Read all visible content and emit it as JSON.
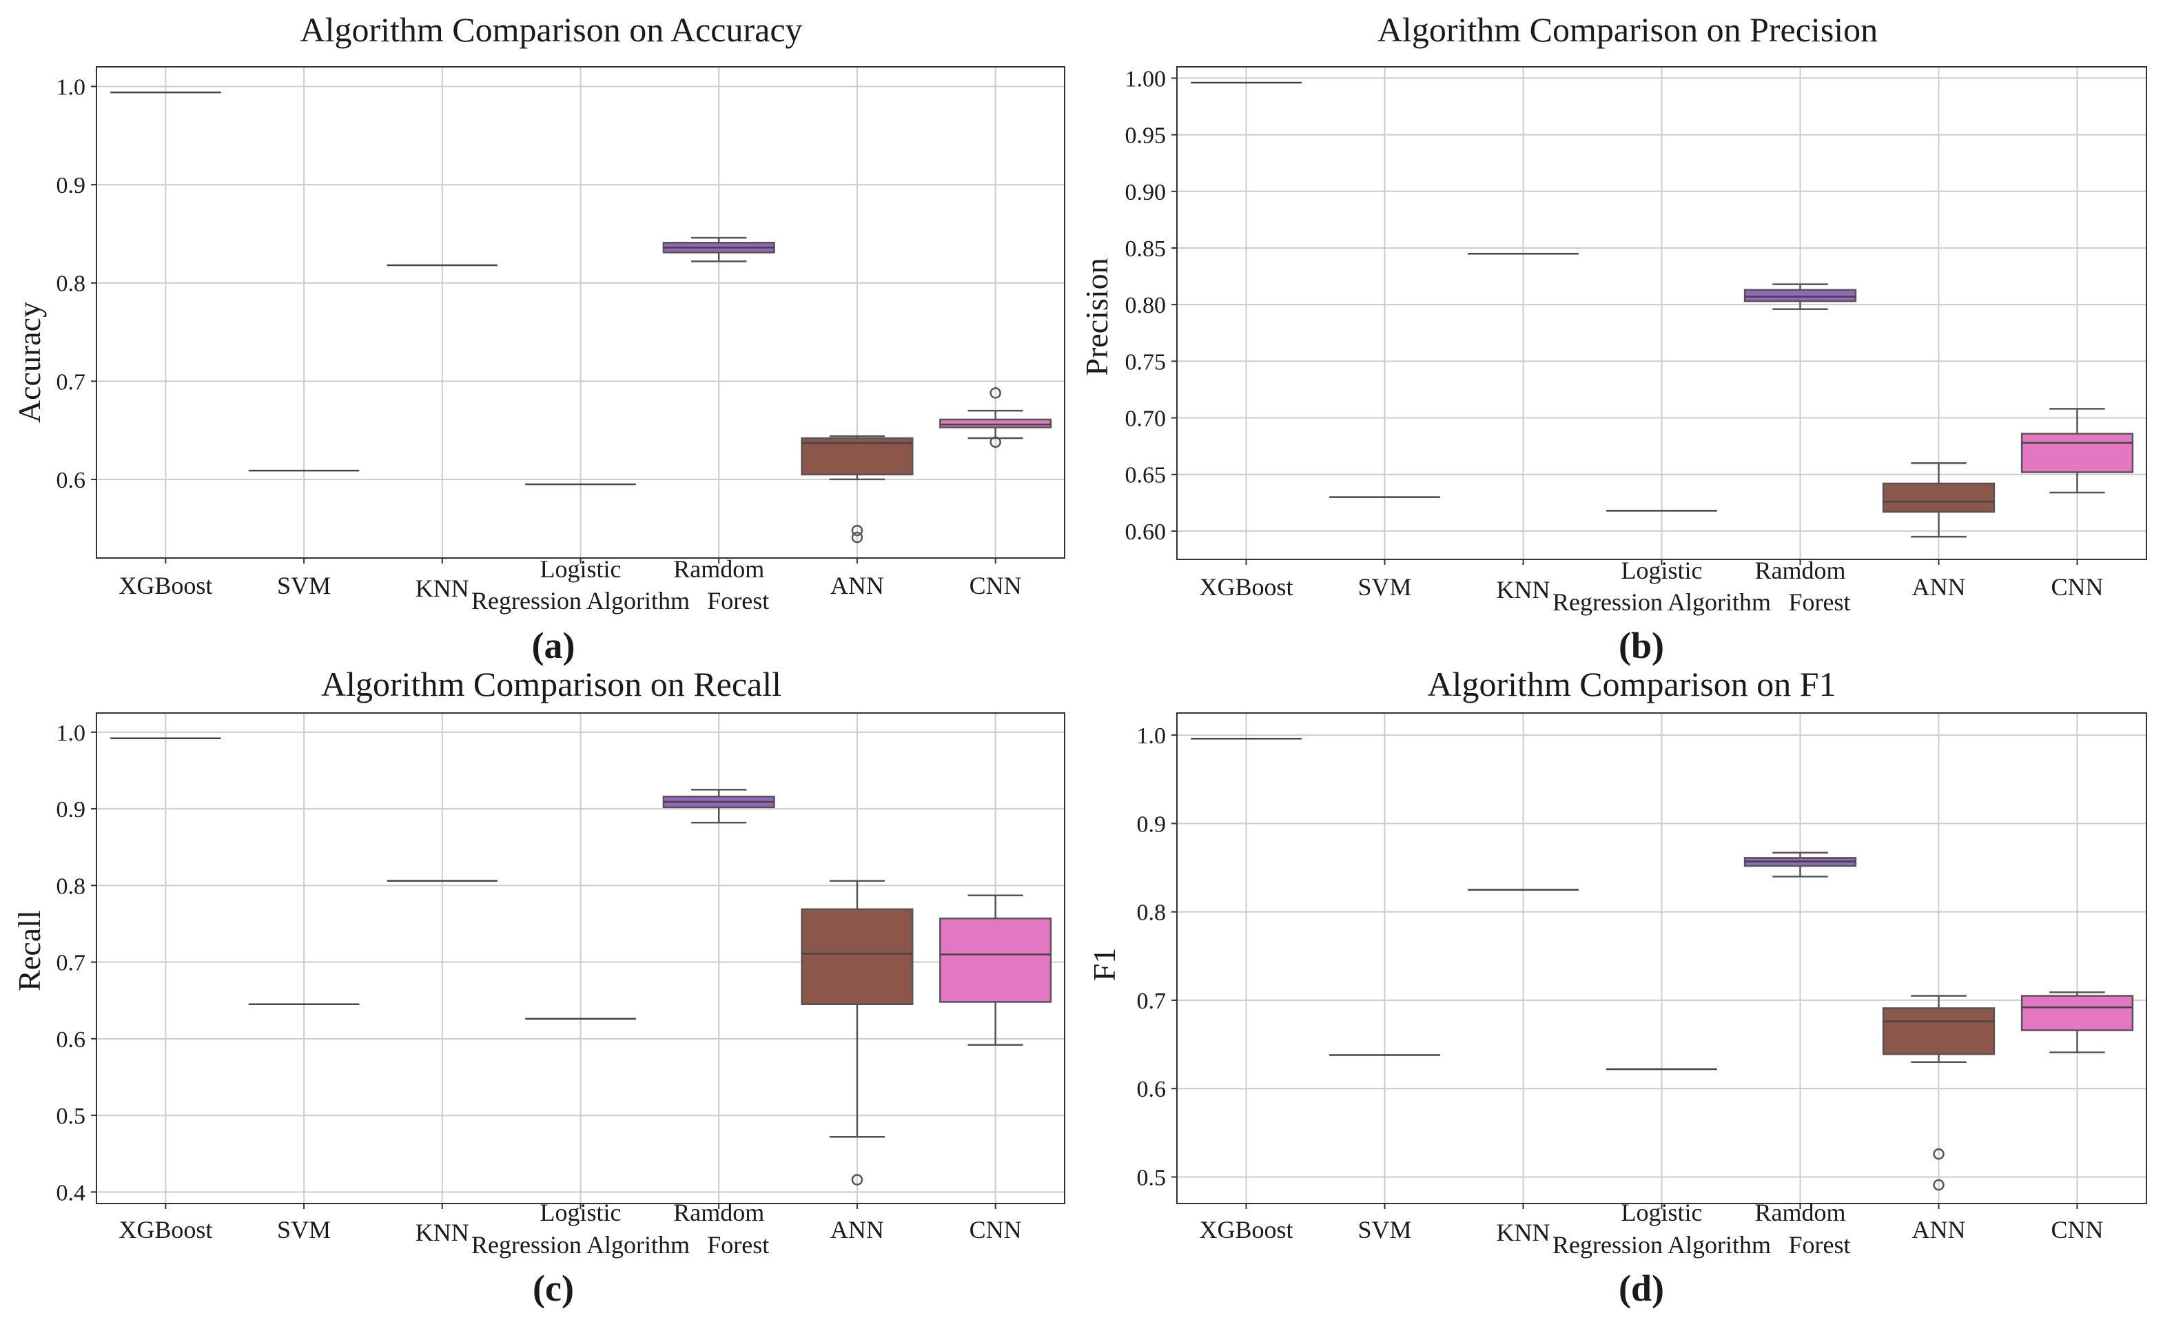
{
  "chart_data": [
    {
      "type": "box",
      "panel": "(a)",
      "title": "Algorithm Comparison on Accuracy",
      "ylabel": "Accuracy",
      "ylim": [
        0.52,
        1.02
      ],
      "yticks": [
        0.6,
        0.7,
        0.8,
        0.9,
        1.0
      ],
      "ytick_labels": [
        "0.6",
        "0.7",
        "0.8",
        "0.9",
        "1.0"
      ],
      "categories": [
        "XGBoost",
        "SVM",
        "KNN",
        "Logistic Regression Algorithm",
        "Ramdom Forest",
        "ANN",
        "CNN"
      ],
      "boxes": [
        {
          "name": "XGBoost",
          "color": "#7f7f7f",
          "min": 0.994,
          "q1": 0.994,
          "median": 0.994,
          "q3": 0.994,
          "max": 0.994,
          "fliers": []
        },
        {
          "name": "SVM",
          "color": "#7f7f7f",
          "min": 0.609,
          "q1": 0.609,
          "median": 0.609,
          "q3": 0.609,
          "max": 0.609,
          "fliers": []
        },
        {
          "name": "KNN",
          "color": "#7f7f7f",
          "min": 0.818,
          "q1": 0.818,
          "median": 0.818,
          "q3": 0.818,
          "max": 0.818,
          "fliers": []
        },
        {
          "name": "Logistic Regression Algorithm",
          "color": "#7f7f7f",
          "min": 0.595,
          "q1": 0.595,
          "median": 0.595,
          "q3": 0.595,
          "max": 0.595,
          "fliers": []
        },
        {
          "name": "Ramdom Forest",
          "color": "#9467bd",
          "min": 0.822,
          "q1": 0.831,
          "median": 0.836,
          "q3": 0.841,
          "max": 0.846,
          "fliers": []
        },
        {
          "name": "ANN",
          "color": "#8c564b",
          "min": 0.6,
          "q1": 0.605,
          "median": 0.637,
          "q3": 0.642,
          "max": 0.644,
          "fliers": [
            0.548,
            0.541
          ]
        },
        {
          "name": "CNN",
          "color": "#e377c2",
          "min": 0.642,
          "q1": 0.653,
          "median": 0.656,
          "q3": 0.661,
          "max": 0.67,
          "fliers": [
            0.688,
            0.638
          ]
        }
      ]
    },
    {
      "type": "box",
      "panel": "(b)",
      "title": "Algorithm Comparison on Precision",
      "ylabel": "Precision",
      "ylim": [
        0.575,
        1.01
      ],
      "yticks": [
        0.6,
        0.65,
        0.7,
        0.75,
        0.8,
        0.85,
        0.9,
        0.95,
        1.0
      ],
      "ytick_labels": [
        "0.60",
        "0.65",
        "0.70",
        "0.75",
        "0.80",
        "0.85",
        "0.90",
        "0.95",
        "1.00"
      ],
      "categories": [
        "XGBoost",
        "SVM",
        "KNN",
        "Logistic Regression Algorithm",
        "Ramdom Forest",
        "ANN",
        "CNN"
      ],
      "boxes": [
        {
          "name": "XGBoost",
          "color": "#7f7f7f",
          "min": 0.996,
          "q1": 0.996,
          "median": 0.996,
          "q3": 0.996,
          "max": 0.996,
          "fliers": []
        },
        {
          "name": "SVM",
          "color": "#7f7f7f",
          "min": 0.63,
          "q1": 0.63,
          "median": 0.63,
          "q3": 0.63,
          "max": 0.63,
          "fliers": []
        },
        {
          "name": "KNN",
          "color": "#7f7f7f",
          "min": 0.845,
          "q1": 0.845,
          "median": 0.845,
          "q3": 0.845,
          "max": 0.845,
          "fliers": []
        },
        {
          "name": "Logistic Regression Algorithm",
          "color": "#7f7f7f",
          "min": 0.618,
          "q1": 0.618,
          "median": 0.618,
          "q3": 0.618,
          "max": 0.618,
          "fliers": []
        },
        {
          "name": "Ramdom Forest",
          "color": "#9467bd",
          "min": 0.796,
          "q1": 0.803,
          "median": 0.807,
          "q3": 0.813,
          "max": 0.818,
          "fliers": []
        },
        {
          "name": "ANN",
          "color": "#8c564b",
          "min": 0.595,
          "q1": 0.617,
          "median": 0.626,
          "q3": 0.642,
          "max": 0.66,
          "fliers": []
        },
        {
          "name": "CNN",
          "color": "#e377c2",
          "min": 0.634,
          "q1": 0.652,
          "median": 0.678,
          "q3": 0.686,
          "max": 0.708,
          "fliers": []
        }
      ]
    },
    {
      "type": "box",
      "panel": "(c)",
      "title": "Algorithm Comparison on Recall",
      "ylabel": "Recall",
      "ylim": [
        0.385,
        1.025
      ],
      "yticks": [
        0.4,
        0.5,
        0.6,
        0.7,
        0.8,
        0.9,
        1.0
      ],
      "ytick_labels": [
        "0.4",
        "0.5",
        "0.6",
        "0.7",
        "0.8",
        "0.9",
        "1.0"
      ],
      "categories": [
        "XGBoost",
        "SVM",
        "KNN",
        "Logistic Regression Algorithm",
        "Ramdom Forest",
        "ANN",
        "CNN"
      ],
      "boxes": [
        {
          "name": "XGBoost",
          "color": "#7f7f7f",
          "min": 0.992,
          "q1": 0.992,
          "median": 0.992,
          "q3": 0.992,
          "max": 0.992,
          "fliers": []
        },
        {
          "name": "SVM",
          "color": "#7f7f7f",
          "min": 0.645,
          "q1": 0.645,
          "median": 0.645,
          "q3": 0.645,
          "max": 0.645,
          "fliers": []
        },
        {
          "name": "KNN",
          "color": "#7f7f7f",
          "min": 0.806,
          "q1": 0.806,
          "median": 0.806,
          "q3": 0.806,
          "max": 0.806,
          "fliers": []
        },
        {
          "name": "Logistic Regression Algorithm",
          "color": "#7f7f7f",
          "min": 0.626,
          "q1": 0.626,
          "median": 0.626,
          "q3": 0.626,
          "max": 0.626,
          "fliers": []
        },
        {
          "name": "Ramdom Forest",
          "color": "#9467bd",
          "min": 0.882,
          "q1": 0.902,
          "median": 0.909,
          "q3": 0.916,
          "max": 0.925,
          "fliers": []
        },
        {
          "name": "ANN",
          "color": "#8c564b",
          "min": 0.472,
          "q1": 0.645,
          "median": 0.711,
          "q3": 0.769,
          "max": 0.806,
          "fliers": [
            0.416
          ]
        },
        {
          "name": "CNN",
          "color": "#e377c2",
          "min": 0.592,
          "q1": 0.648,
          "median": 0.71,
          "q3": 0.757,
          "max": 0.787,
          "fliers": []
        }
      ]
    },
    {
      "type": "box",
      "panel": "(d)",
      "title": "Algorithm Comparison on F1",
      "ylabel": "F1",
      "ylim": [
        0.47,
        1.025
      ],
      "yticks": [
        0.5,
        0.6,
        0.7,
        0.8,
        0.9,
        1.0
      ],
      "ytick_labels": [
        "0.5",
        "0.6",
        "0.7",
        "0.8",
        "0.9",
        "1.0"
      ],
      "categories": [
        "XGBoost",
        "SVM",
        "KNN",
        "Logistic Regression Algorithm",
        "Ramdom Forest",
        "ANN",
        "CNN"
      ],
      "boxes": [
        {
          "name": "XGBoost",
          "color": "#7f7f7f",
          "min": 0.996,
          "q1": 0.996,
          "median": 0.996,
          "q3": 0.996,
          "max": 0.996,
          "fliers": []
        },
        {
          "name": "SVM",
          "color": "#7f7f7f",
          "min": 0.638,
          "q1": 0.638,
          "median": 0.638,
          "q3": 0.638,
          "max": 0.638,
          "fliers": []
        },
        {
          "name": "KNN",
          "color": "#7f7f7f",
          "min": 0.825,
          "q1": 0.825,
          "median": 0.825,
          "q3": 0.825,
          "max": 0.825,
          "fliers": []
        },
        {
          "name": "Logistic Regression Algorithm",
          "color": "#7f7f7f",
          "min": 0.622,
          "q1": 0.622,
          "median": 0.622,
          "q3": 0.622,
          "max": 0.622,
          "fliers": []
        },
        {
          "name": "Ramdom Forest",
          "color": "#9467bd",
          "min": 0.84,
          "q1": 0.852,
          "median": 0.857,
          "q3": 0.861,
          "max": 0.867,
          "fliers": []
        },
        {
          "name": "ANN",
          "color": "#8c564b",
          "min": 0.63,
          "q1": 0.639,
          "median": 0.676,
          "q3": 0.691,
          "max": 0.705,
          "fliers": [
            0.526,
            0.491
          ]
        },
        {
          "name": "CNN",
          "color": "#e377c2",
          "min": 0.641,
          "q1": 0.666,
          "median": 0.692,
          "q3": 0.705,
          "max": 0.709,
          "fliers": []
        }
      ]
    }
  ]
}
